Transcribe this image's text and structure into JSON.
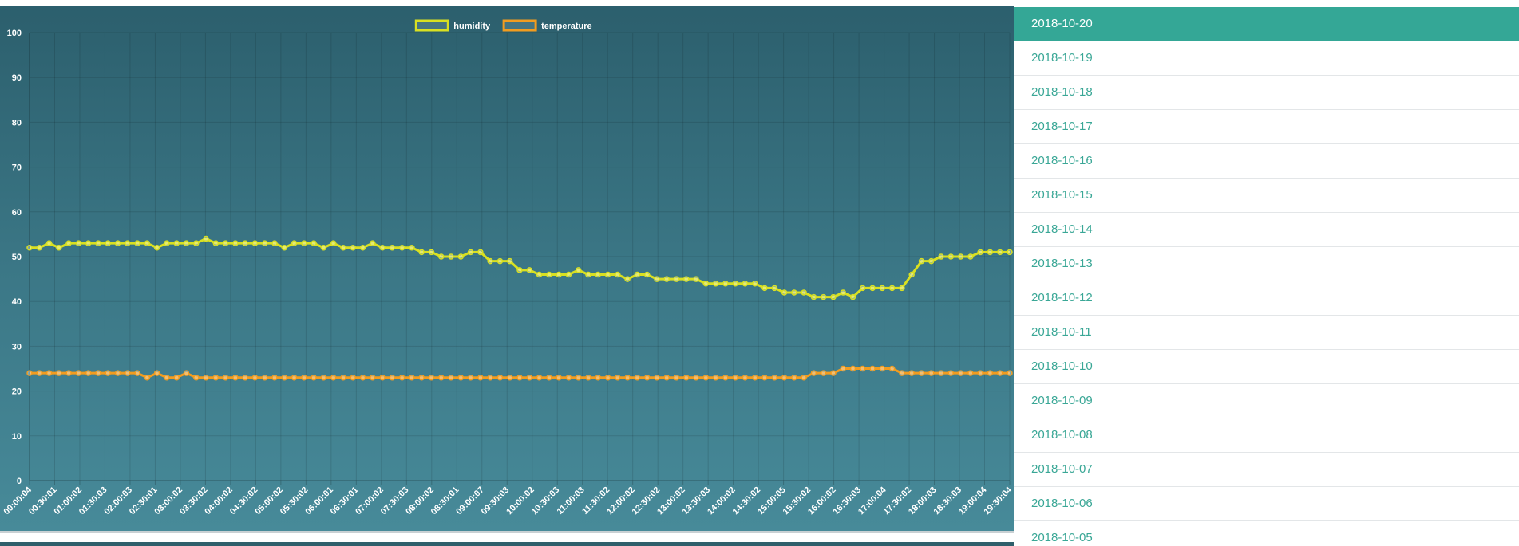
{
  "chart_data": {
    "type": "line",
    "title": "",
    "xlabel": "",
    "ylabel": "",
    "ylim": [
      0,
      100
    ],
    "y_ticks": [
      0,
      10,
      20,
      30,
      40,
      50,
      60,
      70,
      80,
      90,
      100
    ],
    "grid": true,
    "legend_position": "top-center",
    "x_labels": [
      "00:00:04",
      "00:30:01",
      "01:00:02",
      "01:30:03",
      "02:00:03",
      "02:30:01",
      "03:00:02",
      "03:30:02",
      "04:00:02",
      "04:30:02",
      "05:00:02",
      "05:30:02",
      "06:00:01",
      "06:30:01",
      "07:00:02",
      "07:30:03",
      "08:00:02",
      "08:30:01",
      "09:00:07",
      "09:30:03",
      "10:00:02",
      "10:30:03",
      "11:00:03",
      "11:30:02",
      "12:00:02",
      "12:30:02",
      "13:00:02",
      "13:30:03",
      "14:00:02",
      "14:30:02",
      "15:00:05",
      "15:30:02",
      "16:00:02",
      "16:30:03",
      "17:00:04",
      "17:30:02",
      "18:00:03",
      "18:30:03",
      "19:00:04",
      "19:30:04"
    ],
    "series": [
      {
        "name": "humidity",
        "color": "#d9e021",
        "values": [
          52,
          52,
          53,
          52,
          53,
          53,
          53,
          53,
          53,
          53,
          53,
          53,
          53,
          52,
          53,
          53,
          53,
          53,
          54,
          53,
          53,
          53,
          53,
          53,
          53,
          53,
          52,
          53,
          53,
          53,
          52,
          53,
          52,
          52,
          52,
          53,
          52,
          52,
          52,
          52,
          51,
          51,
          50,
          50,
          50,
          51,
          51,
          49,
          49,
          49,
          47,
          47,
          46,
          46,
          46,
          46,
          47,
          46,
          46,
          46,
          46,
          45,
          46,
          46,
          45,
          45,
          45,
          45,
          45,
          44,
          44,
          44,
          44,
          44,
          44,
          43,
          43,
          42,
          42,
          42,
          41,
          41,
          41,
          42,
          41,
          43,
          43,
          43,
          43,
          43,
          46,
          49,
          49,
          50,
          50,
          50,
          50,
          51,
          51,
          51,
          51
        ]
      },
      {
        "name": "temperature",
        "color": "#f29c1f",
        "values": [
          24,
          24,
          24,
          24,
          24,
          24,
          24,
          24,
          24,
          24,
          24,
          24,
          23,
          24,
          23,
          23,
          24,
          23,
          23,
          23,
          23,
          23,
          23,
          23,
          23,
          23,
          23,
          23,
          23,
          23,
          23,
          23,
          23,
          23,
          23,
          23,
          23,
          23,
          23,
          23,
          23,
          23,
          23,
          23,
          23,
          23,
          23,
          23,
          23,
          23,
          23,
          23,
          23,
          23,
          23,
          23,
          23,
          23,
          23,
          23,
          23,
          23,
          23,
          23,
          23,
          23,
          23,
          23,
          23,
          23,
          23,
          23,
          23,
          23,
          23,
          23,
          23,
          23,
          23,
          23,
          24,
          24,
          24,
          25,
          25,
          25,
          25,
          25,
          25,
          24,
          24,
          24,
          24,
          24,
          24,
          24,
          24,
          24,
          24,
          24,
          24
        ]
      }
    ]
  },
  "date_list": {
    "items": [
      "2018-10-20",
      "2018-10-19",
      "2018-10-18",
      "2018-10-17",
      "2018-10-16",
      "2018-10-15",
      "2018-10-14",
      "2018-10-13",
      "2018-10-12",
      "2018-10-11",
      "2018-10-10",
      "2018-10-09",
      "2018-10-08",
      "2018-10-07",
      "2018-10-06",
      "2018-10-05"
    ],
    "active_index": 0
  },
  "colors": {
    "accent": "#34a796",
    "panel_top": "#2c5f6d",
    "panel_bottom": "#478a99"
  }
}
